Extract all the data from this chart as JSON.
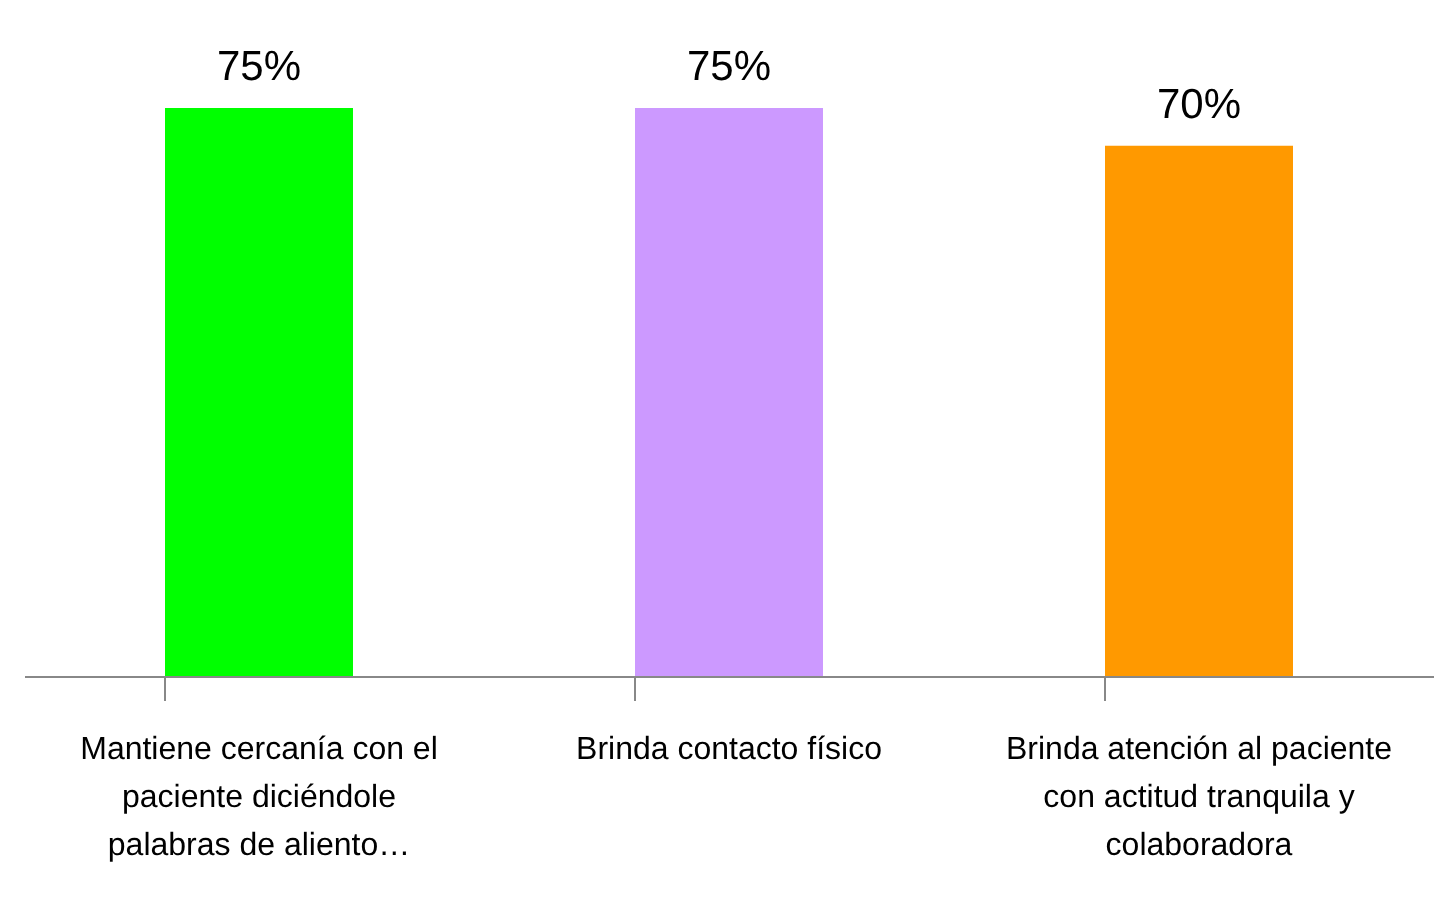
{
  "chart_data": {
    "type": "bar",
    "categories": [
      "Mantiene cercanía con el paciente diciéndole palabras de aliento…",
      "Brinda contacto físico",
      "Brinda atención al paciente con actitud tranquila y colaboradora"
    ],
    "values": [
      75,
      75,
      70
    ],
    "value_labels": [
      "75%",
      "75%",
      "70%"
    ],
    "colors": [
      "#00ff00",
      "#cc99ff",
      "#ff9900"
    ]
  }
}
